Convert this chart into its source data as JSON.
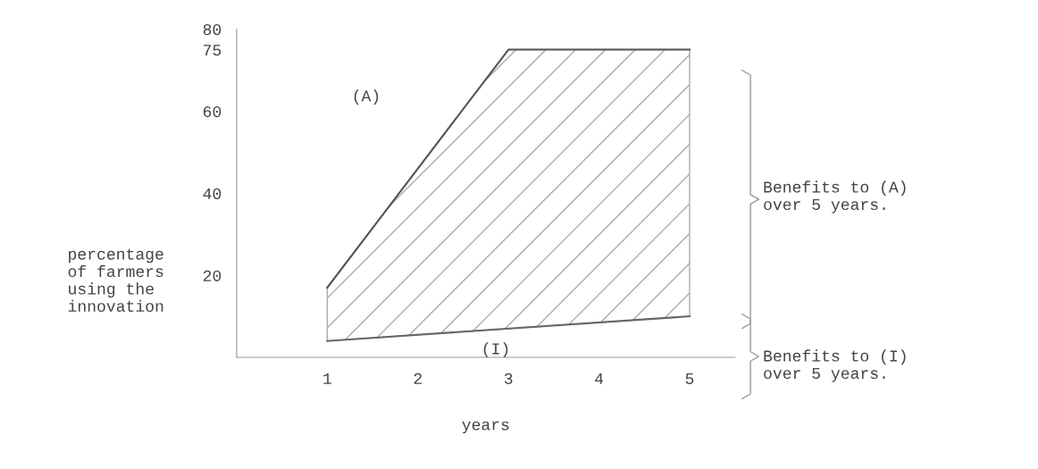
{
  "chart_data": {
    "type": "line",
    "xlabel": "years",
    "ylabel": "percentage\nof farmers\nusing the\ninnovation",
    "xlim": [
      0,
      5.5
    ],
    "xticks": [
      1,
      2,
      3,
      4,
      5
    ],
    "ylim": [
      0,
      80
    ],
    "yticks": [
      20,
      40,
      60,
      75,
      80
    ],
    "grid": false,
    "legend": false,
    "marker": "none",
    "line_style": "solid",
    "series": [
      {
        "color": "#555555",
        "x": [
          1,
          3,
          5
        ],
        "values": [
          17,
          75,
          75
        ],
        "lower": [
          4,
          7,
          10
        ],
        "upper": [
          17,
          75,
          75
        ]
      },
      {
        "color": "#666666",
        "x": [
          1,
          5
        ],
        "values": [
          4,
          10
        ]
      }
    ],
    "annotations": [
      "(A)",
      "(I)",
      "Benefits to (A)\nover 5 years.",
      "Benefits to (I)\nover 5 years."
    ]
  }
}
